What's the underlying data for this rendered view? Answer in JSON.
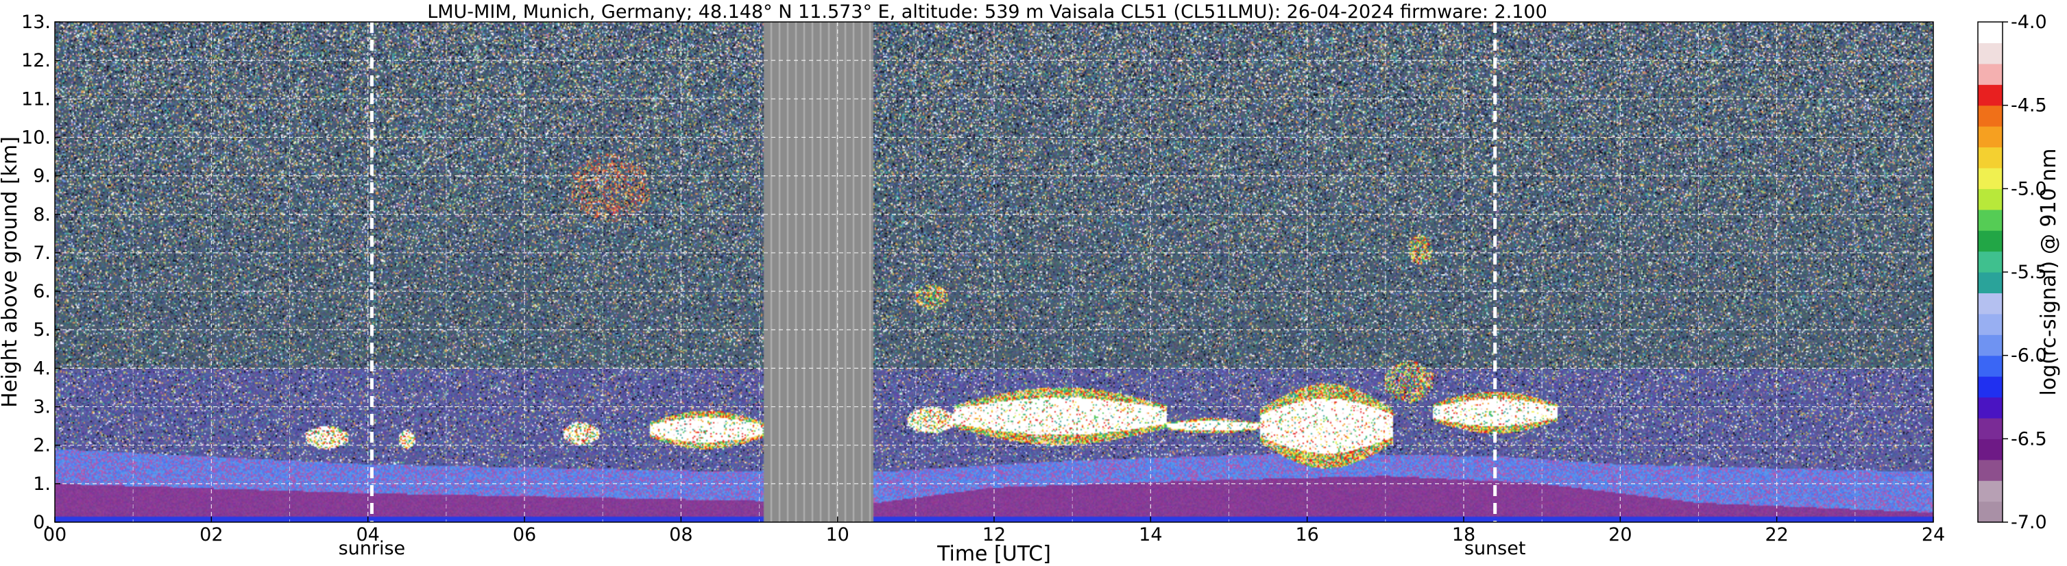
{
  "chart_data": {
    "type": "heatmap",
    "title": "LMU-MIM, Munich, Germany; 48.148° N 11.573° E, altitude: 539 m    Vaisala CL51 (CL51LMU): 26-04-2024    firmware: 2.100",
    "xlabel": "Time [UTC]",
    "ylabel": "Height above ground [km]",
    "xlim": [
      0,
      24
    ],
    "ylim": [
      0,
      13
    ],
    "x_ticks": [
      "00",
      "02",
      "04",
      "06",
      "08",
      "10",
      "12",
      "14",
      "16",
      "18",
      "20",
      "22",
      "24"
    ],
    "y_ticks": [
      "0.",
      "1.",
      "2.",
      "3.",
      "4.",
      "5.",
      "6.",
      "7.",
      "8.",
      "9.",
      "10.",
      "11.",
      "12.",
      "13."
    ],
    "grid": true,
    "colorbar": {
      "label": "log(rc-signal) @ 910 nm",
      "range": [
        -7.0,
        -4.0
      ],
      "ticks": [
        "-7.0",
        "-6.5",
        "-6.0",
        "-5.5",
        "-5.0",
        "-4.5",
        "-4.0"
      ],
      "colors": [
        "#a990a6",
        "#b7a0b4",
        "#8d4f8d",
        "#6e1a86",
        "#7a2b96",
        "#4a14c2",
        "#2030f0",
        "#3a66f5",
        "#6f93f2",
        "#98aff2",
        "#b4c0f0",
        "#2aa39a",
        "#3fc08e",
        "#22a646",
        "#55cc55",
        "#b8e83a",
        "#f0f050",
        "#f4d030",
        "#f6a020",
        "#f07018",
        "#e82020",
        "#f4b0b0",
        "#f0dede",
        "#ffffff"
      ]
    },
    "events": [
      {
        "name": "sunrise",
        "time": 4.05
      },
      {
        "name": "sunset",
        "time": 18.4
      }
    ],
    "no_data_interval": [
      9.05,
      10.45
    ],
    "background_layer": {
      "stable_layer_top_km": [
        {
          "t": 0,
          "h": 1.0
        },
        {
          "t": 4,
          "h": 0.75
        },
        {
          "t": 9,
          "h": 0.55
        },
        {
          "t": 10.5,
          "h": 0.5
        },
        {
          "t": 12,
          "h": 0.9
        },
        {
          "t": 15,
          "h": 1.1
        },
        {
          "t": 17,
          "h": 1.2
        },
        {
          "t": 19,
          "h": 1.0
        },
        {
          "t": 21,
          "h": 0.5
        },
        {
          "t": 24,
          "h": 0.25
        }
      ],
      "mixing_layer_top_km": [
        {
          "t": 0,
          "h": 1.9
        },
        {
          "t": 4,
          "h": 1.5
        },
        {
          "t": 9,
          "h": 1.3
        },
        {
          "t": 10.5,
          "h": 1.3
        },
        {
          "t": 13,
          "h": 1.6
        },
        {
          "t": 16,
          "h": 1.8
        },
        {
          "t": 18.5,
          "h": 1.7
        },
        {
          "t": 20,
          "h": 1.5
        },
        {
          "t": 24,
          "h": 1.3
        }
      ]
    },
    "cloud_layers": [
      {
        "t0": 3.2,
        "t1": 3.75,
        "hb": 1.9,
        "ht": 2.5,
        "level": "strong"
      },
      {
        "t0": 4.4,
        "t1": 4.6,
        "hb": 1.9,
        "ht": 2.4,
        "level": "strong"
      },
      {
        "t0": 6.5,
        "t1": 6.95,
        "hb": 2.0,
        "ht": 2.6,
        "level": "strong"
      },
      {
        "t0": 7.6,
        "t1": 9.05,
        "hb": 1.9,
        "ht": 2.9,
        "level": "saturated"
      },
      {
        "t0": 10.9,
        "t1": 11.5,
        "hb": 2.3,
        "ht": 3.0,
        "level": "strong"
      },
      {
        "t0": 11.5,
        "t1": 14.2,
        "hb": 2.0,
        "ht": 3.5,
        "level": "saturated"
      },
      {
        "t0": 14.2,
        "t1": 15.4,
        "hb": 2.3,
        "ht": 2.7,
        "level": "saturated"
      },
      {
        "t0": 15.4,
        "t1": 17.1,
        "hb": 1.4,
        "ht": 3.6,
        "level": "saturated"
      },
      {
        "t0": 17.0,
        "t1": 17.6,
        "hb": 3.1,
        "ht": 4.2,
        "level": "moderate"
      },
      {
        "t0": 17.6,
        "t1": 19.2,
        "hb": 2.3,
        "ht": 3.4,
        "level": "saturated"
      },
      {
        "t0": 6.6,
        "t1": 7.6,
        "hb": 7.8,
        "ht": 9.6,
        "level": "weak"
      },
      {
        "t0": 17.3,
        "t1": 17.6,
        "hb": 6.7,
        "ht": 7.5,
        "level": "moderate"
      },
      {
        "t0": 11.0,
        "t1": 11.4,
        "hb": 5.5,
        "ht": 6.2,
        "level": "moderate"
      }
    ]
  }
}
